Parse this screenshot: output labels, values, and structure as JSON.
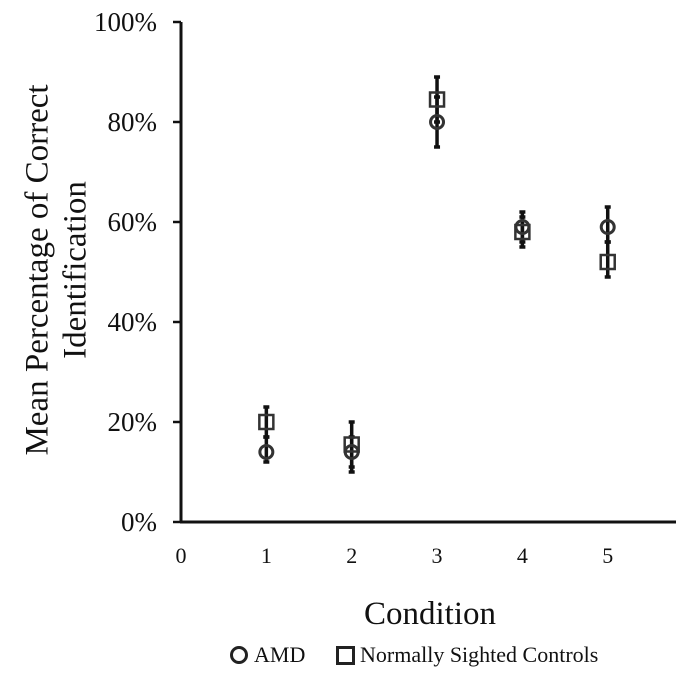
{
  "chart_data": {
    "type": "scatter",
    "title": "",
    "xlabel": "Condition",
    "ylabel_lines": [
      "Mean Percentage of Correct",
      "Identification"
    ],
    "x_ticks": [
      "0",
      "1",
      "2",
      "3",
      "4",
      "5"
    ],
    "y_ticks": [
      "0%",
      "20%",
      "40%",
      "60%",
      "80%",
      "100%"
    ],
    "xlim": [
      0,
      5.8
    ],
    "ylim": [
      0,
      100
    ],
    "grid": false,
    "legend_position": "bottom",
    "series": [
      {
        "name": "AMD",
        "marker": "circle",
        "points": [
          {
            "x": 1,
            "y": 14,
            "err_low": 12,
            "err_high": 17
          },
          {
            "x": 2,
            "y": 14,
            "err_low": 11,
            "err_high": 17
          },
          {
            "x": 3,
            "y": 80,
            "err_low": 75,
            "err_high": 85
          },
          {
            "x": 4,
            "y": 59,
            "err_low": 56,
            "err_high": 62
          },
          {
            "x": 5,
            "y": 59,
            "err_low": 56,
            "err_high": 63
          }
        ]
      },
      {
        "name": "Normally Sighted Controls",
        "marker": "square",
        "points": [
          {
            "x": 1,
            "y": 20,
            "err_low": 17,
            "err_high": 23
          },
          {
            "x": 2,
            "y": 15.5,
            "err_low": 10,
            "err_high": 20
          },
          {
            "x": 3,
            "y": 84.5,
            "err_low": 80,
            "err_high": 89
          },
          {
            "x": 4,
            "y": 58,
            "err_low": 55,
            "err_high": 61
          },
          {
            "x": 5,
            "y": 52,
            "err_low": 49,
            "err_high": 56
          }
        ]
      }
    ]
  },
  "colors": {
    "axis": "#111111",
    "marker_stroke": "#333333",
    "error_bar": "#111111"
  }
}
